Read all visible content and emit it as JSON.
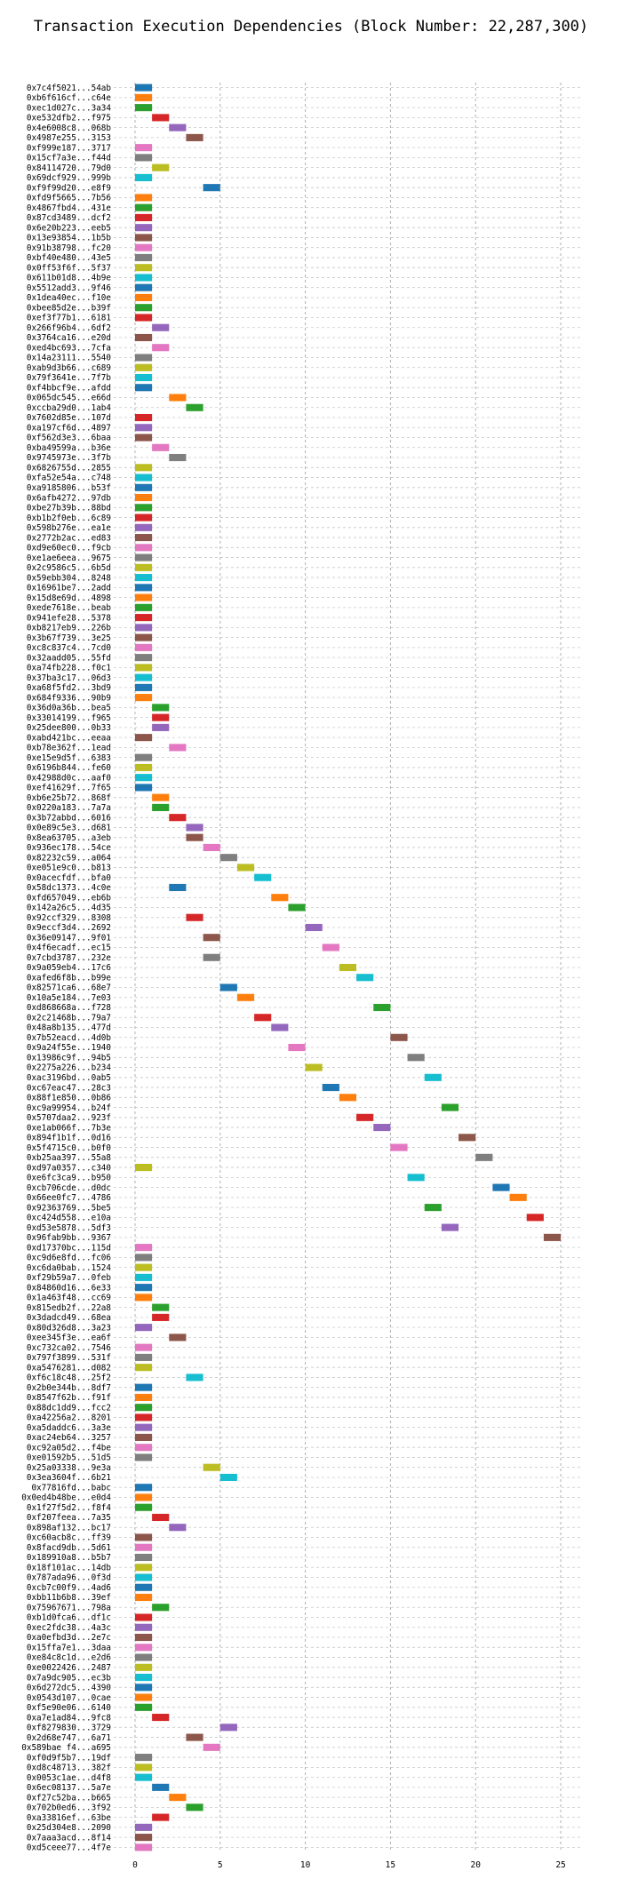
{
  "chart_data": {
    "type": "gantt",
    "title": "Transaction Execution Dependencies (Block Number: 22,287,300)",
    "xlabel": "",
    "ylabel": "",
    "xlim": [
      -1.25,
      26.25
    ],
    "xticks": [
      0,
      5,
      10,
      15,
      20,
      25
    ],
    "grid": "dashed",
    "legend": "none",
    "palette": [
      "#1f77b4",
      "#ff7f0e",
      "#2ca02c",
      "#d62728",
      "#9467bd",
      "#8c564b",
      "#e377c2",
      "#7f7f7f",
      "#bcbd22",
      "#17becf"
    ],
    "transactions": [
      {
        "label": "0x7c4f5021...54ab",
        "start": 0
      },
      {
        "label": "0xb6f616cf...c64e",
        "start": 0
      },
      {
        "label": "0xec1d027c...3a34",
        "start": 0
      },
      {
        "label": "0xe532dfb2...f975",
        "start": 1
      },
      {
        "label": "0x4e6008c8...068b",
        "start": 2
      },
      {
        "label": "0x4987e255...3153",
        "start": 3
      },
      {
        "label": "0xf999e187...3717",
        "start": 0
      },
      {
        "label": "0x15cf7a3e...f44d",
        "start": 0
      },
      {
        "label": "0x84114720...79d0",
        "start": 1
      },
      {
        "label": "0x69dcf929...999b",
        "start": 0
      },
      {
        "label": "0xf9f99d20...e8f9",
        "start": 4
      },
      {
        "label": "0xfd9f5665...7b56",
        "start": 0
      },
      {
        "label": "0x4867fbd4...431e",
        "start": 0
      },
      {
        "label": "0x87cd3489...dcf2",
        "start": 0
      },
      {
        "label": "0x6e20b223...eeb5",
        "start": 0
      },
      {
        "label": "0x13e93854...1b5b",
        "start": 0
      },
      {
        "label": "0x91b38798...fc20",
        "start": 0
      },
      {
        "label": "0xbf40e480...43e5",
        "start": 0
      },
      {
        "label": "0x0ff53f6f...5f37",
        "start": 0
      },
      {
        "label": "0x611b01d8...4b9e",
        "start": 0
      },
      {
        "label": "0x5512add3...9f46",
        "start": 0
      },
      {
        "label": "0x1dea40ec...f10e",
        "start": 0
      },
      {
        "label": "0xbee85d2e...b39f",
        "start": 0
      },
      {
        "label": "0xef3f77b1...6181",
        "start": 0
      },
      {
        "label": "0x266f96b4...6df2",
        "start": 1
      },
      {
        "label": "0x3764ca16...e20d",
        "start": 0
      },
      {
        "label": "0xed4bc693...7cfa",
        "start": 1
      },
      {
        "label": "0x14a23111...5540",
        "start": 0
      },
      {
        "label": "0xab9d3b66...c689",
        "start": 0
      },
      {
        "label": "0x79f3641e...7f7b",
        "start": 0
      },
      {
        "label": "0xf4bbcf9e...afdd",
        "start": 0
      },
      {
        "label": "0x065dc545...e66d",
        "start": 2
      },
      {
        "label": "0xccba29d0...1ab4",
        "start": 3
      },
      {
        "label": "0x7602d85e...107d",
        "start": 0
      },
      {
        "label": "0xa197cf6d...4897",
        "start": 0
      },
      {
        "label": "0xf562d3e3...6baa",
        "start": 0
      },
      {
        "label": "0xba49599a...b36e",
        "start": 1
      },
      {
        "label": "0x9745973e...3f7b",
        "start": 2
      },
      {
        "label": "0x6826755d...2855",
        "start": 0
      },
      {
        "label": "0xfa52e54a...c748",
        "start": 0
      },
      {
        "label": "0xa9185806...b53f",
        "start": 0
      },
      {
        "label": "0x6afb4272...97db",
        "start": 0
      },
      {
        "label": "0xbe27b39b...88bd",
        "start": 0
      },
      {
        "label": "0xb1b2f0eb...6c89",
        "start": 0
      },
      {
        "label": "0x598b276e...ea1e",
        "start": 0
      },
      {
        "label": "0x2772b2ac...ed83",
        "start": 0
      },
      {
        "label": "0xd9e60ec0...f9cb",
        "start": 0
      },
      {
        "label": "0xe1ae6eea...9675",
        "start": 0
      },
      {
        "label": "0x2c9586c5...6b5d",
        "start": 0
      },
      {
        "label": "0x59ebb304...8248",
        "start": 0
      },
      {
        "label": "0x16961be7...2add",
        "start": 0
      },
      {
        "label": "0x15d8e69d...4898",
        "start": 0
      },
      {
        "label": "0xede7618e...beab",
        "start": 0
      },
      {
        "label": "0x941efe28...5378",
        "start": 0
      },
      {
        "label": "0xb8217eb9...226b",
        "start": 0
      },
      {
        "label": "0x3b67f739...3e25",
        "start": 0
      },
      {
        "label": "0xc8c837c4...7cd0",
        "start": 0
      },
      {
        "label": "0x32aadd05...55fd",
        "start": 0
      },
      {
        "label": "0xa74fb228...f0c1",
        "start": 0
      },
      {
        "label": "0x37ba3c17...06d3",
        "start": 0
      },
      {
        "label": "0xa68f5fd2...3bd9",
        "start": 0
      },
      {
        "label": "0x684f9336...90b9",
        "start": 0
      },
      {
        "label": "0x36d0a36b...bea5",
        "start": 1
      },
      {
        "label": "0x33014199...f965",
        "start": 1
      },
      {
        "label": "0x25dee800...0b33",
        "start": 1
      },
      {
        "label": "0xabd421bc...eeaa",
        "start": 0
      },
      {
        "label": "0xb78e362f...1ead",
        "start": 2
      },
      {
        "label": "0xe15e9d5f...6383",
        "start": 0
      },
      {
        "label": "0x6196b844...fe60",
        "start": 0
      },
      {
        "label": "0x42988d0c...aaf0",
        "start": 0
      },
      {
        "label": "0xef41629f...7f65",
        "start": 0
      },
      {
        "label": "0xb6e25b72...868f",
        "start": 1
      },
      {
        "label": "0x0220a183...7a7a",
        "start": 1
      },
      {
        "label": "0x3b72abbd...6016",
        "start": 2
      },
      {
        "label": "0x0e89c5e3...d681",
        "start": 3
      },
      {
        "label": "0x8ea63705...a3eb",
        "start": 3
      },
      {
        "label": "0x936ec178...54ce",
        "start": 4
      },
      {
        "label": "0x82232c59...a064",
        "start": 5
      },
      {
        "label": "0xe051e9c0...b813",
        "start": 6
      },
      {
        "label": "0x0acecfdf...bfa0",
        "start": 7
      },
      {
        "label": "0x58dc1373...4c0e",
        "start": 2
      },
      {
        "label": "0xfd657049...eb6b",
        "start": 8
      },
      {
        "label": "0x142a26c5...4d35",
        "start": 9
      },
      {
        "label": "0x92ccf329...8308",
        "start": 3
      },
      {
        "label": "0x9eccf3d4...2692",
        "start": 10
      },
      {
        "label": "0x36e09147...9f01",
        "start": 4
      },
      {
        "label": "0x4f6ecadf...ec15",
        "start": 11
      },
      {
        "label": "0x7cbd3787...232e",
        "start": 4
      },
      {
        "label": "0x9a059eb4...17c6",
        "start": 12
      },
      {
        "label": "0xafed6f8b...b99e",
        "start": 13
      },
      {
        "label": "0x82571ca6...68e7",
        "start": 5
      },
      {
        "label": "0x10a5e184...7e03",
        "start": 6
      },
      {
        "label": "0xd868668a...f728",
        "start": 14
      },
      {
        "label": "0x2c21468b...79a7",
        "start": 7
      },
      {
        "label": "0x48a8b135...477d",
        "start": 8
      },
      {
        "label": "0x7b52eacd...4d0b",
        "start": 15
      },
      {
        "label": "0x9a24f55e...1940",
        "start": 9
      },
      {
        "label": "0x13986c9f...94b5",
        "start": 16
      },
      {
        "label": "0x2275a226...b234",
        "start": 10
      },
      {
        "label": "0xac3196bd...0ab5",
        "start": 17
      },
      {
        "label": "0xc67eac47...28c3",
        "start": 11
      },
      {
        "label": "0x88f1e850...0b86",
        "start": 12
      },
      {
        "label": "0xc9a99954...b24f",
        "start": 18
      },
      {
        "label": "0x5707daa2...923f",
        "start": 13
      },
      {
        "label": "0xe1ab066f...7b3e",
        "start": 14
      },
      {
        "label": "0x894f1b1f...0d16",
        "start": 19
      },
      {
        "label": "0x5f4715c0...b0f0",
        "start": 15
      },
      {
        "label": "0xb25aa397...55a8",
        "start": 20
      },
      {
        "label": "0xd97a0357...c340",
        "start": 0
      },
      {
        "label": "0xe6fc3ca9...b950",
        "start": 16
      },
      {
        "label": "0xcb706cde...d0dc",
        "start": 21
      },
      {
        "label": "0x66ee0fc7...4786",
        "start": 22
      },
      {
        "label": "0x92363769...5be5",
        "start": 17
      },
      {
        "label": "0xc424d558...e10a",
        "start": 23
      },
      {
        "label": "0xd53e5878...5df3",
        "start": 18
      },
      {
        "label": "0x96fab9bb...9367",
        "start": 24
      },
      {
        "label": "0xd17370bc...115d",
        "start": 0
      },
      {
        "label": "0xc9d6e8fd...fc06",
        "start": 0
      },
      {
        "label": "0xc6da0bab...1524",
        "start": 0
      },
      {
        "label": "0xf29b59a7...0feb",
        "start": 0
      },
      {
        "label": "0x84860d16...6e33",
        "start": 0
      },
      {
        "label": "0x1a463f48...cc69",
        "start": 0
      },
      {
        "label": "0x815edb2f...22a8",
        "start": 1
      },
      {
        "label": "0x3dadcd49...68ea",
        "start": 1
      },
      {
        "label": "0x80d326d8...3a23",
        "start": 0
      },
      {
        "label": "0xee345f3e...ea6f",
        "start": 2
      },
      {
        "label": "0xc732ca02...7546",
        "start": 0
      },
      {
        "label": "0x797f3899...531f",
        "start": 0
      },
      {
        "label": "0xa5476281...d082",
        "start": 0
      },
      {
        "label": "0xf6c18c48...25f2",
        "start": 3
      },
      {
        "label": "0x2b0e344b...8df7",
        "start": 0
      },
      {
        "label": "0x8547f62b...f91f",
        "start": 0
      },
      {
        "label": "0x88dc1dd9...fcc2",
        "start": 0
      },
      {
        "label": "0xa42256a2...8201",
        "start": 0
      },
      {
        "label": "0xa5daddc6...3a3e",
        "start": 0
      },
      {
        "label": "0xac24eb64...3257",
        "start": 0
      },
      {
        "label": "0xc92a05d2...f4be",
        "start": 0
      },
      {
        "label": "0xe01592b5...51d5",
        "start": 0
      },
      {
        "label": "0x25a03338...9e3a",
        "start": 4
      },
      {
        "label": "0x3ea3604f...6b21",
        "start": 5
      },
      {
        "label": "0x77816fd...babc",
        "start": 0
      },
      {
        "label": "0x0ed4b48be...e0d4",
        "start": 0
      },
      {
        "label": "0x1f27f5d2...f8f4",
        "start": 0
      },
      {
        "label": "0xf207feea...7a35",
        "start": 1
      },
      {
        "label": "0x898af132...bc17",
        "start": 2
      },
      {
        "label": "0xc60acb8c...ff39",
        "start": 0
      },
      {
        "label": "0x8facd9db...5d61",
        "start": 0
      },
      {
        "label": "0x189910a8...b5b7",
        "start": 0
      },
      {
        "label": "0x18f101ac...14db",
        "start": 0
      },
      {
        "label": "0x787ada96...0f3d",
        "start": 0
      },
      {
        "label": "0xcb7c00f9...4ad6",
        "start": 0
      },
      {
        "label": "0xbb11b6b8...39ef",
        "start": 0
      },
      {
        "label": "0x75967671...798a",
        "start": 1
      },
      {
        "label": "0xb1d0fca6...df1c",
        "start": 0
      },
      {
        "label": "0xec2fdc38...4a3c",
        "start": 0
      },
      {
        "label": "0xa0efbd3d...2e7c",
        "start": 0
      },
      {
        "label": "0x15ffa7e1...3daa",
        "start": 0
      },
      {
        "label": "0xe84c8c1d...e2d6",
        "start": 0
      },
      {
        "label": "0xe0022426...2487",
        "start": 0
      },
      {
        "label": "0x7a9dc905...ec3b",
        "start": 0
      },
      {
        "label": "0x6d272dc5...4390",
        "start": 0
      },
      {
        "label": "0x0543d107...0cae",
        "start": 0
      },
      {
        "label": "0xf5e90e06...6140",
        "start": 0
      },
      {
        "label": "0xa7e1ad84...9fc8",
        "start": 1
      },
      {
        "label": "0xf8279830...3729",
        "start": 5
      },
      {
        "label": "0x2d68e747...6a71",
        "start": 3
      },
      {
        "label": "0x589bae f4...a695",
        "start": 4
      },
      {
        "label": "0xf0d9f5b7...19df",
        "start": 0
      },
      {
        "label": "0xd8c48713...382f",
        "start": 0
      },
      {
        "label": "0x0053c1ae...d4f8",
        "start": 0
      },
      {
        "label": "0x6ec08137...5a7e",
        "start": 1
      },
      {
        "label": "0xf27c52ba...b665",
        "start": 2
      },
      {
        "label": "0x702b0ed6...3f92",
        "start": 3
      },
      {
        "label": "0xa33816ef...63be",
        "start": 1
      },
      {
        "label": "0x25d304e8...2090",
        "start": 0
      },
      {
        "label": "0x7aaa3acd...8f14",
        "start": 0
      },
      {
        "label": "0xd5ceee77...4f7e",
        "start": 0
      }
    ]
  }
}
